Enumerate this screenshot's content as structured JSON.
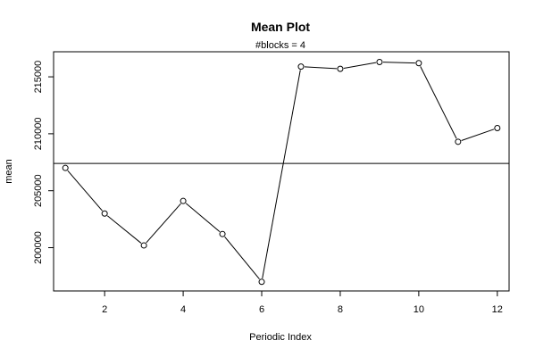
{
  "chart_data": {
    "type": "line",
    "title": "Mean Plot",
    "subtitle": "#blocks =  4",
    "xlabel": "Periodic Index",
    "ylabel": "mean",
    "x": [
      1,
      2,
      3,
      4,
      5,
      6,
      7,
      8,
      9,
      10,
      11,
      12
    ],
    "series": [
      {
        "values": [
          207000,
          203000,
          200200,
          204100,
          201200,
          197000,
          215900,
          215700,
          216300,
          216200,
          209300,
          210500
        ]
      }
    ],
    "reference_line": {
      "y": 207400
    },
    "xlim": [
      0.7,
      12.3
    ],
    "ylim": [
      196200,
      217200
    ],
    "x_ticks": [
      2,
      4,
      6,
      8,
      10,
      12
    ],
    "y_ticks": [
      200000,
      205000,
      210000,
      215000
    ],
    "grid": false,
    "markers": "open-circle",
    "color": "#000000"
  }
}
